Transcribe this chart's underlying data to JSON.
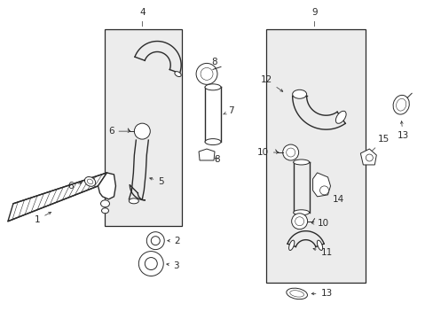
{
  "bg_color": "#ffffff",
  "line_color": "#2a2a2a",
  "box_fill": "#ececec",
  "fig_width": 4.89,
  "fig_height": 3.6,
  "dpi": 100,
  "label_fs": 7.5
}
